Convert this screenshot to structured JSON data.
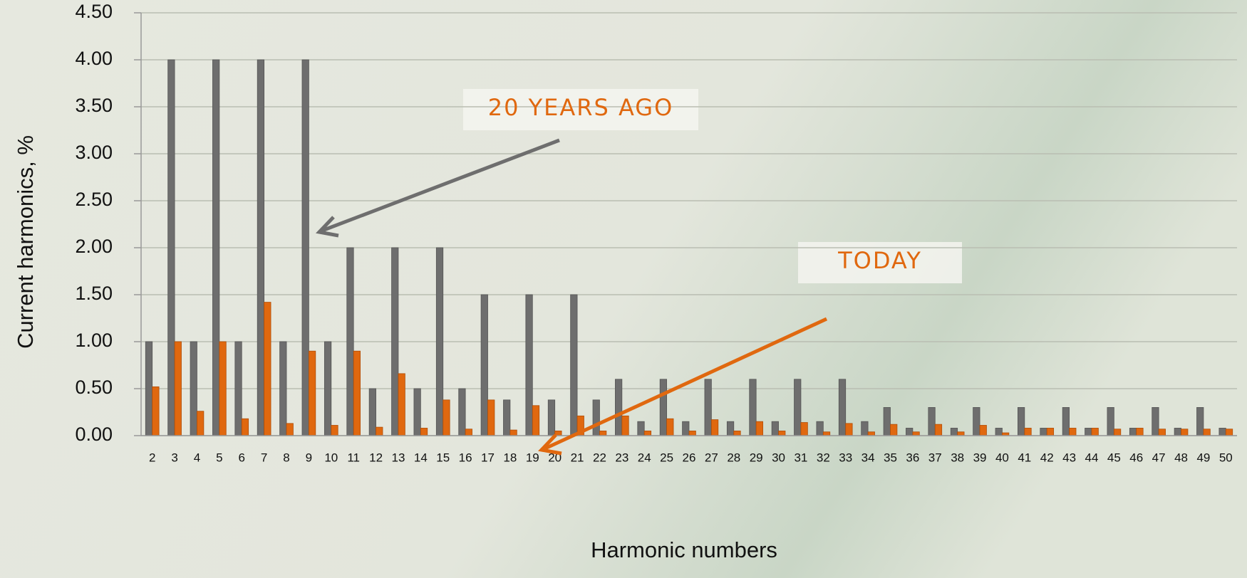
{
  "chart_data": {
    "type": "bar",
    "y_label": "Current harmonics, %",
    "x_label": "Harmonic numbers",
    "categories": [
      "2",
      "3",
      "4",
      "5",
      "6",
      "7",
      "8",
      "9",
      "10",
      "11",
      "12",
      "13",
      "14",
      "15",
      "16",
      "17",
      "18",
      "19",
      "20",
      "21",
      "22",
      "23",
      "24",
      "25",
      "26",
      "27",
      "28",
      "29",
      "30",
      "31",
      "32",
      "33",
      "34",
      "35",
      "36",
      "37",
      "38",
      "39",
      "40",
      "41",
      "42",
      "43",
      "44",
      "45",
      "46",
      "47",
      "48",
      "49",
      "50"
    ],
    "series": [
      {
        "name": "20 YEARS AGO",
        "color": "#6e6e6e",
        "values": [
          1.0,
          4.0,
          1.0,
          4.0,
          1.0,
          4.0,
          1.0,
          4.0,
          1.0,
          2.0,
          0.5,
          2.0,
          0.5,
          2.0,
          0.5,
          1.5,
          0.38,
          1.5,
          0.38,
          1.5,
          0.38,
          0.6,
          0.15,
          0.6,
          0.15,
          0.6,
          0.15,
          0.6,
          0.15,
          0.6,
          0.15,
          0.6,
          0.15,
          0.3,
          0.08,
          0.3,
          0.08,
          0.3,
          0.08,
          0.3,
          0.08,
          0.3,
          0.08,
          0.3,
          0.08,
          0.3,
          0.08,
          0.3,
          0.08
        ]
      },
      {
        "name": "TODAY",
        "color": "#e0680f",
        "values": [
          0.52,
          1.0,
          0.26,
          1.0,
          0.18,
          1.42,
          0.13,
          0.9,
          0.11,
          0.9,
          0.09,
          0.66,
          0.08,
          0.38,
          0.07,
          0.38,
          0.06,
          0.32,
          0.05,
          0.21,
          0.05,
          0.21,
          0.05,
          0.18,
          0.05,
          0.17,
          0.05,
          0.15,
          0.05,
          0.14,
          0.04,
          0.13,
          0.04,
          0.12,
          0.04,
          0.12,
          0.04,
          0.11,
          0.03,
          0.08,
          0.08,
          0.08,
          0.08,
          0.07,
          0.08,
          0.07,
          0.07,
          0.07,
          0.07
        ]
      }
    ],
    "ylim": [
      0,
      4.5
    ],
    "yticks": [
      {
        "value": 0,
        "label": "0.00"
      },
      {
        "value": 0.5,
        "label": "0.50"
      },
      {
        "value": 1,
        "label": "1.00"
      },
      {
        "value": 1.5,
        "label": "1.50"
      },
      {
        "value": 2,
        "label": "2.00"
      },
      {
        "value": 2.5,
        "label": "2.50"
      },
      {
        "value": 3,
        "label": "3.00"
      },
      {
        "value": 3.5,
        "label": "3.50"
      },
      {
        "value": 4,
        "label": "4.00"
      },
      {
        "value": 4.5,
        "label": "4.50"
      }
    ],
    "grid": true
  }
}
